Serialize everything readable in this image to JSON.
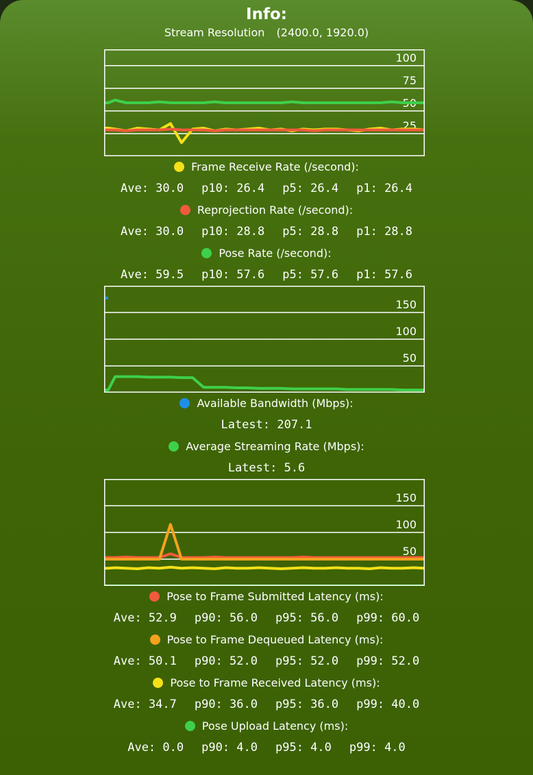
{
  "title": "Info:",
  "stream_resolution": {
    "label": "Stream Resolution",
    "value": "(2400.0, 1920.0)"
  },
  "chart_data": [
    {
      "type": "line",
      "ylim": [
        0,
        118
      ],
      "yticks": [
        25,
        50,
        75,
        100
      ],
      "series": [
        {
          "name": "Frame Receive Rate (/second):",
          "color": "#f5e019",
          "values": [
            31,
            30,
            28,
            31,
            30,
            29,
            36,
            15,
            30,
            31,
            28,
            30,
            29,
            30,
            31,
            29,
            30,
            28,
            30,
            29,
            30,
            30,
            29,
            28,
            30,
            31,
            29,
            30,
            30,
            29
          ]
        },
        {
          "name": "Reprojection Rate (/second):",
          "color": "#f05a3c",
          "values": [
            29,
            29,
            28,
            29,
            29,
            29,
            30,
            29,
            29,
            29,
            28,
            29,
            29,
            29,
            29,
            29,
            29,
            29,
            29,
            28,
            29,
            29,
            29,
            29,
            29,
            29,
            29,
            29,
            29,
            29
          ]
        },
        {
          "name": "Pose Rate (/second):",
          "color": "#3ed04a",
          "values": [
            59,
            62,
            59,
            59,
            59,
            60,
            59,
            59,
            59,
            59,
            60,
            59,
            59,
            59,
            59,
            59,
            59,
            60,
            59,
            59,
            59,
            59,
            59,
            59,
            59,
            59,
            60,
            59,
            59,
            59
          ]
        }
      ]
    },
    {
      "type": "line",
      "ylim": [
        0,
        200
      ],
      "yticks": [
        50,
        100,
        150
      ],
      "series": [
        {
          "name": "Available Bandwidth (Mbps):",
          "color": "#1e8ee8",
          "values": [
            177,
            null,
            null,
            null,
            null,
            null,
            null,
            null,
            null,
            null,
            null,
            null,
            null,
            null,
            null,
            null,
            null,
            null,
            null,
            null,
            null,
            null,
            null,
            null,
            null,
            null,
            null,
            null,
            null,
            null
          ]
        },
        {
          "name": "Average Streaming Rate (Mbps):",
          "color": "#3ed04a",
          "values": [
            5,
            30,
            30,
            30,
            29,
            29,
            29,
            28,
            28,
            10,
            10,
            10,
            9,
            9,
            8,
            8,
            8,
            7,
            7,
            7,
            7,
            7,
            6,
            6,
            6,
            6,
            6,
            5,
            5,
            5
          ]
        }
      ]
    },
    {
      "type": "line",
      "ylim": [
        0,
        200
      ],
      "yticks": [
        50,
        100,
        150
      ],
      "series": [
        {
          "name": "Pose to Frame Submitted Latency (ms):",
          "color": "#f05a3c",
          "values": [
            53,
            53,
            54,
            53,
            53,
            53,
            60,
            53,
            53,
            53,
            54,
            53,
            53,
            53,
            53,
            53,
            53,
            53,
            54,
            53,
            53,
            53,
            53,
            53,
            53,
            53,
            53,
            53,
            53,
            53
          ]
        },
        {
          "name": "Pose to Frame Dequeued Latency (ms):",
          "color": "#f4a21e",
          "values": [
            50,
            50,
            50,
            50,
            50,
            50,
            115,
            50,
            50,
            50,
            50,
            50,
            50,
            50,
            50,
            50,
            50,
            50,
            50,
            50,
            50,
            50,
            50,
            50,
            50,
            50,
            50,
            50,
            50,
            50
          ]
        },
        {
          "name": "Pose to Frame Received Latency (ms):",
          "color": "#f5e019",
          "values": [
            33,
            34,
            33,
            32,
            34,
            33,
            35,
            33,
            34,
            33,
            32,
            34,
            33,
            33,
            34,
            33,
            32,
            33,
            34,
            33,
            33,
            34,
            33,
            33,
            32,
            34,
            33,
            33,
            34,
            33
          ]
        },
        {
          "name": "Pose Upload Latency (ms):",
          "color": "#3ed04a",
          "values": [
            0,
            0,
            0,
            0,
            0,
            0,
            0,
            0,
            0,
            0,
            0,
            0,
            0,
            0,
            0,
            0,
            0,
            0,
            0,
            0,
            0,
            0,
            0,
            0,
            0,
            0,
            0,
            0,
            0,
            0
          ]
        }
      ]
    }
  ],
  "stats": [
    [
      [
        "Ave: 30.0",
        "p10: 26.4",
        "p5: 26.4",
        "p1: 26.4"
      ],
      [
        "Ave: 30.0",
        "p10: 28.8",
        "p5: 28.8",
        "p1: 28.8"
      ],
      [
        "Ave: 59.5",
        "p10: 57.6",
        "p5: 57.6",
        "p1: 57.6"
      ]
    ],
    [
      [
        "Latest: 207.1"
      ],
      [
        "Latest: 5.6"
      ]
    ],
    [
      [
        "Ave: 52.9",
        "p90: 56.0",
        "p95: 56.0",
        "p99: 60.0"
      ],
      [
        "Ave: 50.1",
        "p90: 52.0",
        "p95: 52.0",
        "p99: 52.0"
      ],
      [
        "Ave: 34.7",
        "p90: 36.0",
        "p95: 36.0",
        "p99: 40.0"
      ],
      [
        "Ave: 0.0",
        "p90: 4.0",
        "p95: 4.0",
        "p99: 4.0"
      ]
    ]
  ]
}
